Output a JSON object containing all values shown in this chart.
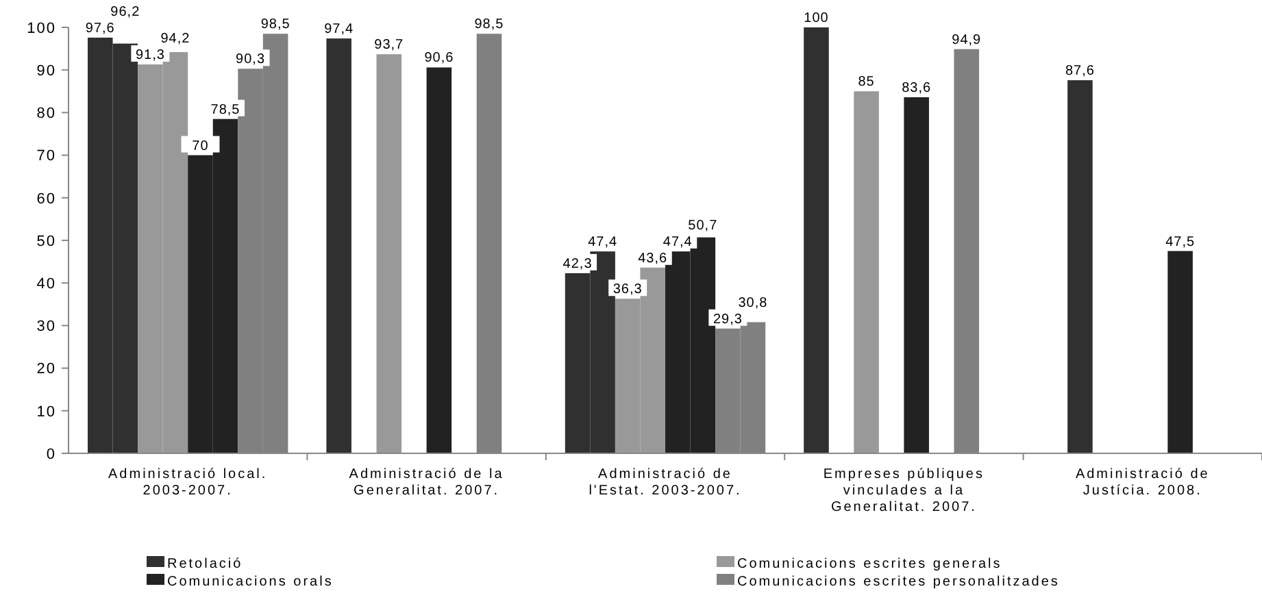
{
  "chart_data": {
    "type": "bar",
    "categories": [
      "Administració local. 2003-2007.",
      "Administració de la Generalitat. 2007.",
      "Administració de l'Estat. 2003-2007.",
      "Empreses públiques vinculades a la Generalitat. 2007.",
      "Administració de Justícia. 2008."
    ],
    "series": [
      {
        "name": "Retolació",
        "color": "#303030",
        "values": [
          97.6,
          97.4,
          42.3,
          100,
          null
        ],
        "value_labels": [
          "97,6",
          "97,4",
          "42,3",
          "100",
          null
        ]
      },
      {
        "color": "#303030",
        "values": [
          96.2,
          null,
          47.4,
          null,
          87.6
        ],
        "value_labels": [
          "96,2",
          null,
          "47,4",
          null,
          "87,6"
        ]
      },
      {
        "name": "Comunicacions escrites generals",
        "color": "#999999",
        "values": [
          91.3,
          93.7,
          36.3,
          85,
          null
        ],
        "value_labels": [
          "91,3",
          "93,7",
          "36,3",
          "85",
          null
        ]
      },
      {
        "color": "#999999",
        "values": [
          94.2,
          null,
          43.6,
          null,
          null
        ],
        "value_labels": [
          "94,2",
          null,
          "43,6",
          null,
          null
        ]
      },
      {
        "name": "Comunicacions orals",
        "color": "#222222",
        "values": [
          70,
          90.6,
          47.4,
          83.6,
          null
        ],
        "value_labels": [
          "70",
          "90,6",
          "47,4",
          "83,6",
          null
        ]
      },
      {
        "color": "#222222",
        "values": [
          78.5,
          null,
          50.7,
          null,
          47.5
        ],
        "value_labels": [
          "78,5",
          null,
          "50,7",
          null,
          "47,5"
        ]
      },
      {
        "name": "Comunicacions escrites personalitzades",
        "color": "#808080",
        "values": [
          90.3,
          98.5,
          29.3,
          94.9,
          null
        ],
        "value_labels": [
          "90,3",
          "98,5",
          "29,3",
          "94,9",
          null
        ]
      },
      {
        "color": "#808080",
        "values": [
          98.5,
          null,
          30.8,
          null,
          null
        ],
        "value_labels": [
          "98,5",
          null,
          "30,8",
          null,
          null
        ]
      }
    ],
    "ylim": [
      0,
      100
    ],
    "yticks": [
      0,
      10,
      20,
      30,
      40,
      50,
      60,
      70,
      80,
      90,
      100
    ],
    "grid": false,
    "legend": "bottom"
  }
}
